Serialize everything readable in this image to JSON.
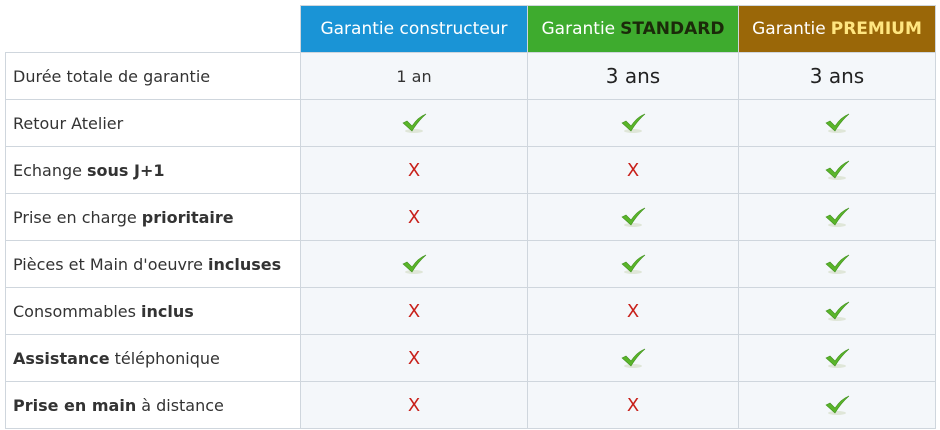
{
  "header": {
    "columns": [
      {
        "parts": [
          {
            "text": "Garantie constructeur"
          }
        ],
        "background": "#1a94d6"
      },
      {
        "parts": [
          {
            "text": "Garantie"
          },
          {
            "text": "STANDARD",
            "bold": true,
            "color": "#1b2a0a"
          }
        ],
        "background": "#3eab2e"
      },
      {
        "parts": [
          {
            "text": "Garantie"
          },
          {
            "text": "PREMIUM",
            "bold": true,
            "color": "#ffe680"
          }
        ],
        "background": "#9a6708"
      }
    ]
  },
  "table": {
    "rows": [
      {
        "label": [
          {
            "text": "Durée totale de garantie"
          }
        ],
        "cells": [
          {
            "text": "1 an"
          },
          {
            "text": "3 ans",
            "large": true
          },
          {
            "text": "3 ans",
            "large": true
          }
        ]
      },
      {
        "label": [
          {
            "text": "Retour Atelier"
          }
        ],
        "cells": [
          {
            "check": true
          },
          {
            "check": true
          },
          {
            "check": true
          }
        ]
      },
      {
        "label": [
          {
            "text": "Echange"
          },
          {
            "text": "sous J+1",
            "bold": true
          }
        ],
        "cells": [
          {
            "text": "X",
            "cross": true
          },
          {
            "text": "X",
            "cross": true
          },
          {
            "check": true
          }
        ]
      },
      {
        "label": [
          {
            "text": "Prise en charge"
          },
          {
            "text": "prioritaire",
            "bold": true
          }
        ],
        "cells": [
          {
            "text": "X",
            "cross": true
          },
          {
            "check": true
          },
          {
            "check": true
          }
        ]
      },
      {
        "label": [
          {
            "text": "Pièces et Main d'oeuvre"
          },
          {
            "text": "incluses",
            "bold": true
          }
        ],
        "cells": [
          {
            "check": true
          },
          {
            "check": true
          },
          {
            "check": true
          }
        ]
      },
      {
        "label": [
          {
            "text": "Consommables"
          },
          {
            "text": "inclus",
            "bold": true
          }
        ],
        "cells": [
          {
            "text": "X",
            "cross": true
          },
          {
            "text": "X",
            "cross": true
          },
          {
            "check": true
          }
        ]
      },
      {
        "label": [
          {
            "text": "Assistance",
            "bold": true
          },
          {
            "text": "téléphonique"
          }
        ],
        "cells": [
          {
            "text": "X",
            "cross": true
          },
          {
            "check": true
          },
          {
            "check": true
          }
        ]
      },
      {
        "label": [
          {
            "text": "Prise en main",
            "bold": true
          },
          {
            "text": "à distance"
          }
        ],
        "cells": [
          {
            "text": "X",
            "cross": true
          },
          {
            "text": "X",
            "cross": true
          },
          {
            "check": true
          }
        ]
      }
    ]
  }
}
